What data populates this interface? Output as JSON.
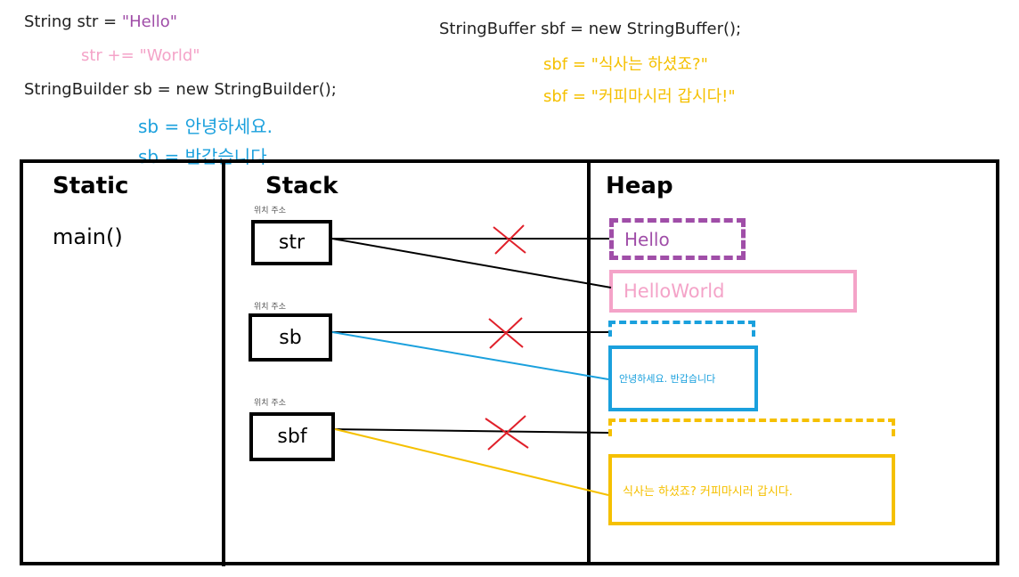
{
  "code_lines": {
    "string_decl": "String str = ",
    "string_init": "\"Hello\"",
    "string_append": "str += \"World\"",
    "builder_decl": "StringBuilder sb = new StringBuilder();",
    "builder_assign1": "sb = 안녕하세요.",
    "builder_assign2": "sb = 반갑습니다.",
    "buffer_decl": "StringBuffer sbf = new StringBuffer();",
    "buffer_assign1": "sbf = \"식사는 하셨죠?\"",
    "buffer_assign2": "sbf = \"커피마시러 갑시다!\""
  },
  "sections": {
    "static_title": "Static",
    "static_item": "main()",
    "stack_title": "Stack",
    "heap_title": "Heap"
  },
  "stack_vars": {
    "caption": "위치 주소",
    "str": "str",
    "sb": "sb",
    "sbf": "sbf"
  },
  "heap_objects": {
    "hello": "Hello",
    "hello_world": "HelloWorld",
    "sb_value": "안녕하세요. 반갑습니다",
    "sbf_value": "식사는 하셨죠? 커피마시러 갑시다."
  },
  "colors": {
    "purple": "#a04ea8",
    "pink": "#f4a3c8",
    "blue": "#1aa0dd",
    "yellow": "#f5c000",
    "cross": "#e0202a"
  }
}
